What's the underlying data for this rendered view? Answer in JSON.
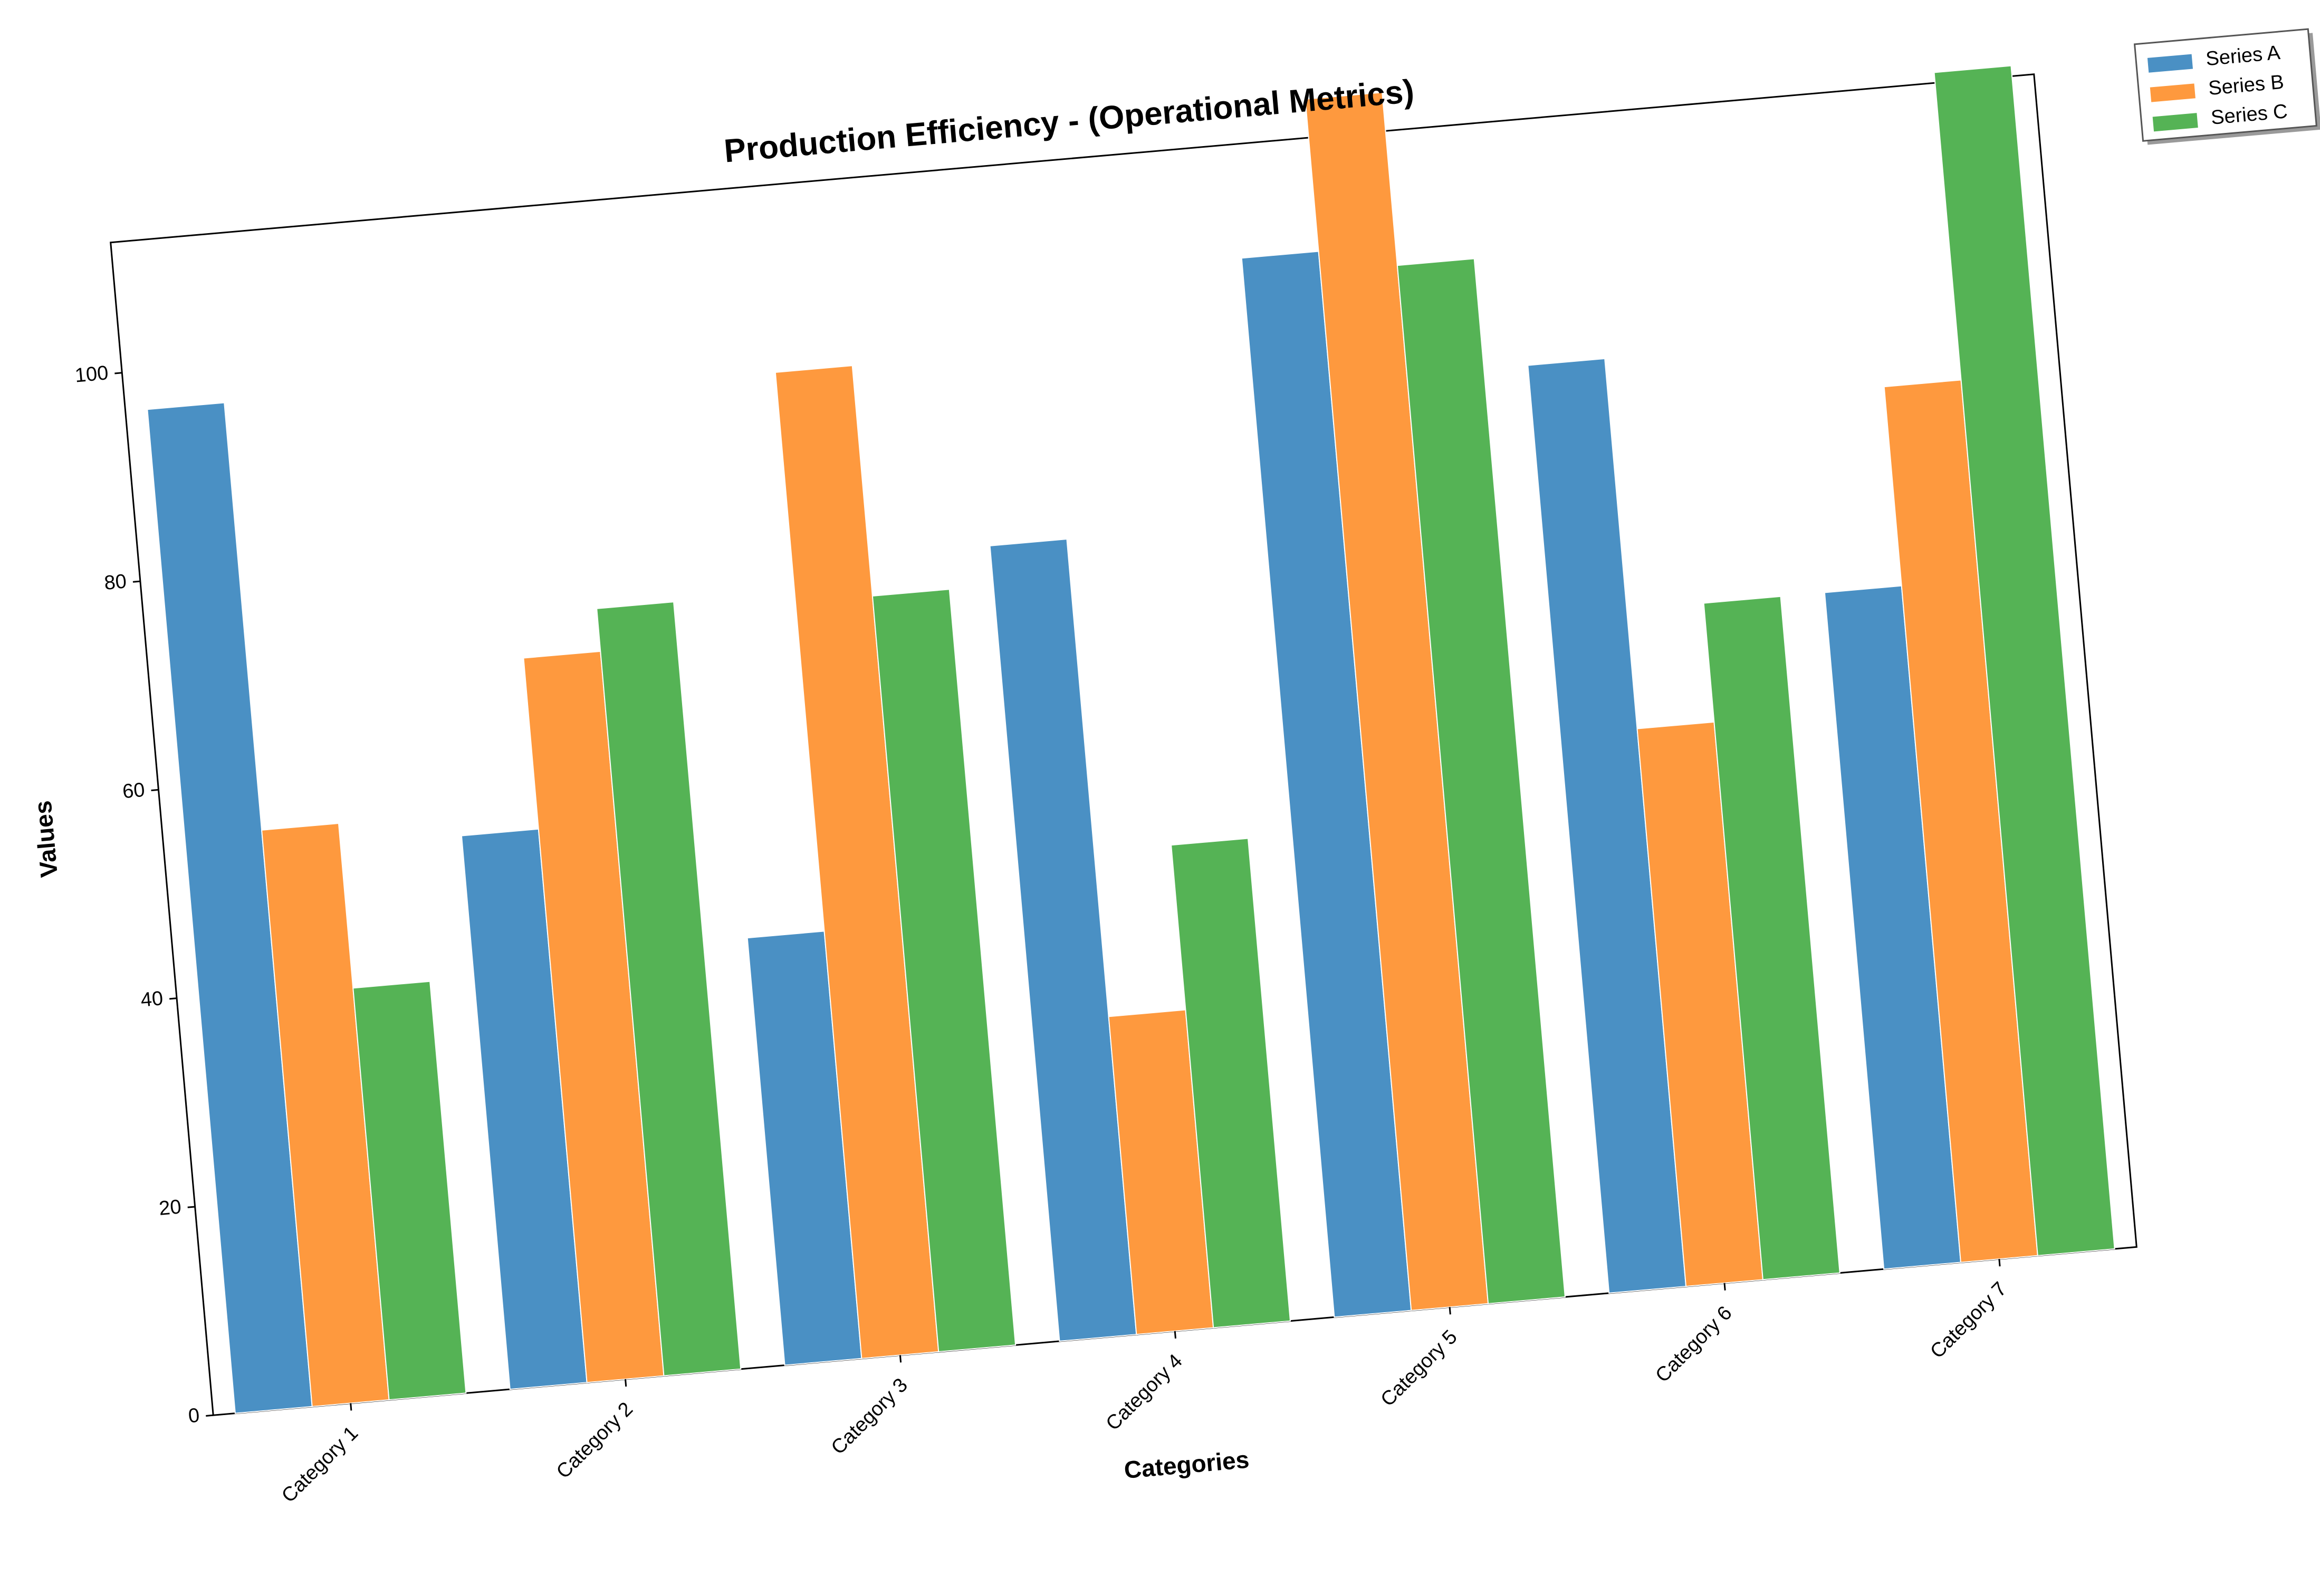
{
  "chart_data": {
    "type": "bar",
    "title": "Production Efficiency - (Operational Metrics)",
    "xlabel": "Categories",
    "ylabel": "Values",
    "categories": [
      "Category 1",
      "Category 2",
      "Category 3",
      "Category 4",
      "Category 5",
      "Category 6",
      "Category 7"
    ],
    "series": [
      {
        "name": "Series A",
        "color": "#4a90c4",
        "values": [
          96.3,
          53.1,
          41.0,
          76.3,
          101.6,
          89.0,
          64.9
        ]
      },
      {
        "name": "Series B",
        "color": "#fe993e",
        "values": [
          55.3,
          69.5,
          94.6,
          30.5,
          116.2,
          53.5,
          84.0
        ]
      },
      {
        "name": "Series C",
        "color": "#55b355",
        "values": [
          39.5,
          73.6,
          72.5,
          46.3,
          99.6,
          64.9,
          113.5
        ]
      }
    ],
    "yticks": [
      0,
      20,
      40,
      60,
      80,
      100
    ],
    "ylim": [
      0,
      112.5
    ],
    "grid": false,
    "legend_position": "outside-top-right",
    "rotation_deg": -5
  }
}
